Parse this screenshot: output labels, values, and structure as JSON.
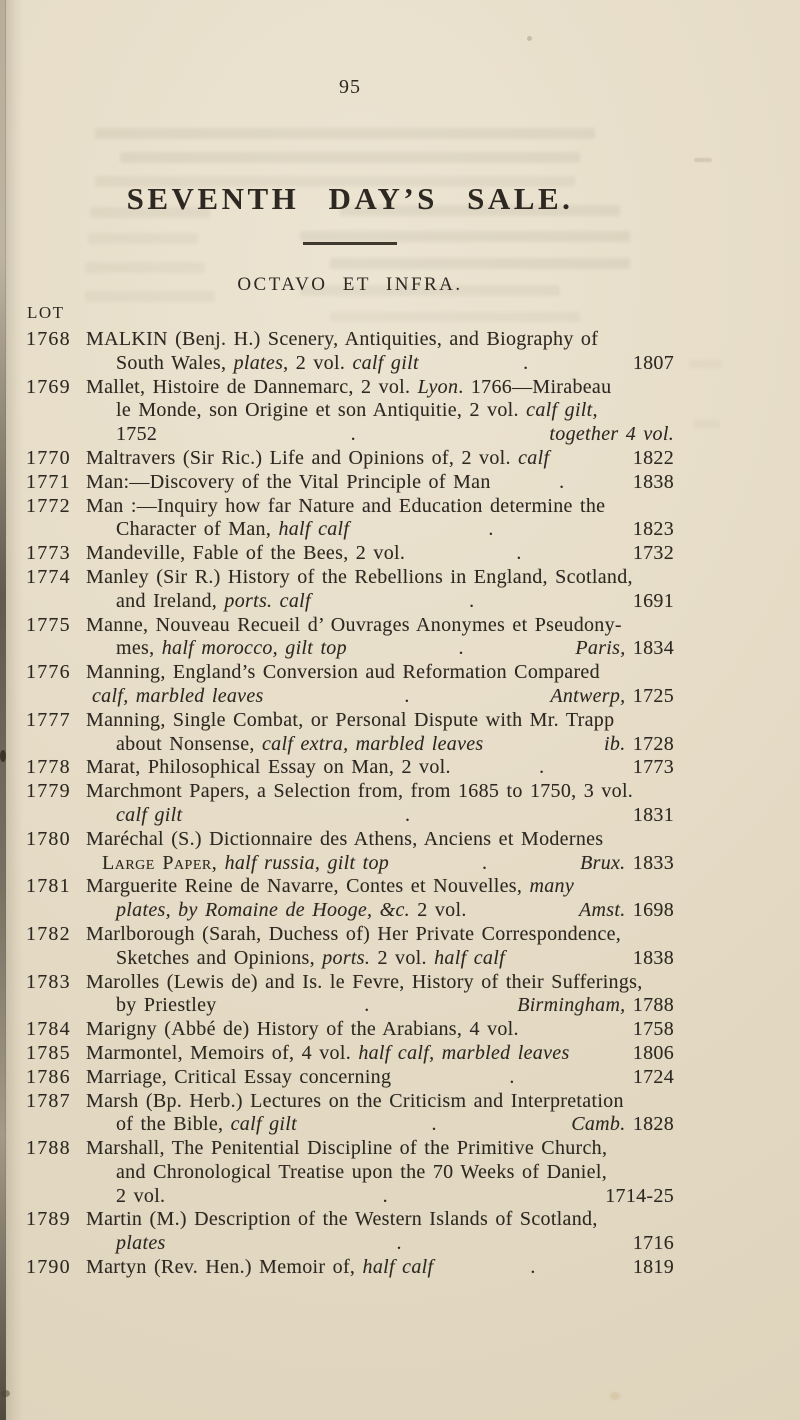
{
  "page": {
    "number": "95",
    "title": "SEVENTH DAY’S SALE.",
    "section_heading": "OCTAVO ET INFRA.",
    "lot_column_header": "LOT"
  },
  "colors": {
    "paper": "#e6dcc7",
    "ink": "#2d2821",
    "edge_shadow": "#2f281f"
  },
  "lots": [
    {
      "num": "1768",
      "lines": [
        {
          "segs": [
            {
              "t": "MALKIN (Benj. H.) Scenery, Antiquities, and Biography of"
            }
          ]
        },
        {
          "indent": 30,
          "segs": [
            {
              "t": "South Wales, "
            },
            {
              "t": "plates",
              "i": 1
            },
            {
              "t": ", 2 vol. "
            },
            {
              "t": "calf gilt",
              "i": 1
            }
          ],
          "dot": true,
          "right": [
            {
              "t": "1807"
            }
          ]
        }
      ]
    },
    {
      "num": "1769",
      "lines": [
        {
          "segs": [
            {
              "t": "Mallet, Histoire de Dannemarc, 2 vol. "
            },
            {
              "t": "Lyon",
              "i": 1
            },
            {
              "t": ". 1766—Mirabeau"
            }
          ]
        },
        {
          "indent": 30,
          "segs": [
            {
              "t": "le Monde, son Origine et son Antiquitie, 2 vol. "
            },
            {
              "t": "calf gilt,",
              "i": 1
            }
          ]
        },
        {
          "indent": 30,
          "segs": [
            {
              "t": "1752"
            }
          ],
          "dot": true,
          "right": [
            {
              "t": "together 4 vol.",
              "i": 1
            }
          ]
        }
      ]
    },
    {
      "num": "1770",
      "lines": [
        {
          "segs": [
            {
              "t": "Maltravers (Sir Ric.) Life and Opinions of, 2 vol. "
            },
            {
              "t": "calf",
              "i": 1
            }
          ],
          "right": [
            {
              "t": "1822"
            }
          ]
        }
      ]
    },
    {
      "num": "1771",
      "lines": [
        {
          "segs": [
            {
              "t": "Man:—Discovery of the Vital Principle of Man"
            }
          ],
          "dot": true,
          "right": [
            {
              "t": "1838"
            }
          ]
        }
      ]
    },
    {
      "num": "1772",
      "lines": [
        {
          "segs": [
            {
              "t": "Man :—Inquiry how far Nature and Education determine the"
            }
          ]
        },
        {
          "indent": 30,
          "segs": [
            {
              "t": "Character of Man, "
            },
            {
              "t": "half calf",
              "i": 1
            }
          ],
          "dot": true,
          "right": [
            {
              "t": "1823"
            }
          ]
        }
      ]
    },
    {
      "num": "1773",
      "lines": [
        {
          "segs": [
            {
              "t": "Mandeville, Fable of the Bees, 2 vol."
            }
          ],
          "dot": true,
          "right": [
            {
              "t": "1732"
            }
          ]
        }
      ]
    },
    {
      "num": "1774",
      "lines": [
        {
          "segs": [
            {
              "t": "Manley (Sir R.) History of the Rebellions in England, Scotland,"
            }
          ]
        },
        {
          "indent": 30,
          "segs": [
            {
              "t": "and Ireland, "
            },
            {
              "t": "ports. calf",
              "i": 1
            }
          ],
          "dot": true,
          "right": [
            {
              "t": "1691"
            }
          ]
        }
      ]
    },
    {
      "num": "1775",
      "lines": [
        {
          "segs": [
            {
              "t": "Manne, Nouveau Recueil d’ Ouvrages Anonymes et Pseudony-"
            }
          ]
        },
        {
          "indent": 30,
          "segs": [
            {
              "t": "mes, "
            },
            {
              "t": "half morocco, gilt top",
              "i": 1
            }
          ],
          "dot": true,
          "right": [
            {
              "t": "Paris,",
              "i": 1
            },
            {
              "t": " 1834"
            }
          ]
        }
      ]
    },
    {
      "num": "1776",
      "lines": [
        {
          "segs": [
            {
              "t": "Manning, England’s Conversion aud Reformation Compared"
            }
          ]
        },
        {
          "indent": 6,
          "segs": [
            {
              "t": "calf, marbled leaves",
              "i": 1
            }
          ],
          "dot": true,
          "right": [
            {
              "t": "Antwerp,",
              "i": 1
            },
            {
              "t": " 1725"
            }
          ]
        }
      ]
    },
    {
      "num": "1777",
      "lines": [
        {
          "segs": [
            {
              "t": "Manning, Single Combat, or Personal Dispute with Mr. Trapp"
            }
          ]
        },
        {
          "indent": 30,
          "segs": [
            {
              "t": "about Nonsense, "
            },
            {
              "t": "calf extra, marbled leaves",
              "i": 1
            }
          ],
          "right": [
            {
              "t": "ib.",
              "i": 1
            },
            {
              "t": " 1728"
            }
          ]
        }
      ]
    },
    {
      "num": "1778",
      "lines": [
        {
          "segs": [
            {
              "t": "Marat, Philosophical Essay on Man, 2 vol."
            }
          ],
          "dot": true,
          "right": [
            {
              "t": "1773"
            }
          ]
        }
      ]
    },
    {
      "num": "1779",
      "lines": [
        {
          "segs": [
            {
              "t": "Marchmont Papers, a Selection from, from 1685 to 1750, 3 vol."
            }
          ]
        },
        {
          "indent": 30,
          "segs": [
            {
              "t": "calf gilt",
              "i": 1
            }
          ],
          "dot": true,
          "right": [
            {
              "t": "1831"
            }
          ]
        }
      ]
    },
    {
      "num": "1780",
      "lines": [
        {
          "segs": [
            {
              "t": "Maréchal (S.) Dictionnaire des Athens, Anciens et Modernes"
            }
          ]
        },
        {
          "indent": 16,
          "segs": [
            {
              "t": "Large Paper,",
              "sc": 1
            },
            {
              "t": " "
            },
            {
              "t": "half russia, gilt top",
              "i": 1
            }
          ],
          "dot": true,
          "right": [
            {
              "t": "Brux.",
              "i": 1
            },
            {
              "t": " 1833"
            }
          ]
        }
      ]
    },
    {
      "num": "1781",
      "lines": [
        {
          "segs": [
            {
              "t": "Marguerite Reine de Navarre, Contes et Nouvelles, "
            },
            {
              "t": "many",
              "i": 1
            }
          ]
        },
        {
          "indent": 30,
          "segs": [
            {
              "t": "plates, by Romaine de Hooge, &c.",
              "i": 1
            },
            {
              "t": " 2 vol."
            }
          ],
          "right": [
            {
              "t": "Amst.",
              "i": 1
            },
            {
              "t": " 1698"
            }
          ]
        }
      ]
    },
    {
      "num": "1782",
      "lines": [
        {
          "segs": [
            {
              "t": "Marlborough (Sarah, Duchess of) Her Private Correspondence,"
            }
          ]
        },
        {
          "indent": 30,
          "segs": [
            {
              "t": "Sketches and Opinions, "
            },
            {
              "t": "ports.",
              "i": 1
            },
            {
              "t": " 2 vol. "
            },
            {
              "t": "half calf",
              "i": 1
            }
          ],
          "right": [
            {
              "t": "1838"
            }
          ]
        }
      ]
    },
    {
      "num": "1783",
      "lines": [
        {
          "segs": [
            {
              "t": "Marolles (Lewis de) and Is. le Fevre, History of their Sufferings,"
            }
          ]
        },
        {
          "indent": 30,
          "segs": [
            {
              "t": "by Priestley"
            }
          ],
          "dot": true,
          "right": [
            {
              "t": "Birmingham,",
              "i": 1
            },
            {
              "t": " 1788"
            }
          ]
        }
      ]
    },
    {
      "num": "1784",
      "lines": [
        {
          "segs": [
            {
              "t": "Marigny (Abbé de) History of the Arabians, 4 vol."
            }
          ],
          "right": [
            {
              "t": "1758"
            }
          ]
        }
      ]
    },
    {
      "num": "1785",
      "lines": [
        {
          "segs": [
            {
              "t": "Marmontel, Memoirs of, 4 vol. "
            },
            {
              "t": "half calf, marbled leaves",
              "i": 1
            }
          ],
          "right": [
            {
              "t": "1806"
            }
          ]
        }
      ]
    },
    {
      "num": "1786",
      "lines": [
        {
          "segs": [
            {
              "t": "Marriage, Critical Essay concerning"
            }
          ],
          "dot": true,
          "right": [
            {
              "t": "1724"
            }
          ]
        }
      ]
    },
    {
      "num": "1787",
      "lines": [
        {
          "segs": [
            {
              "t": "Marsh (Bp. Herb.) Lectures on the Criticism and Interpretation"
            }
          ]
        },
        {
          "indent": 30,
          "segs": [
            {
              "t": "of the Bible, "
            },
            {
              "t": "calf gilt",
              "i": 1
            }
          ],
          "dot": true,
          "right": [
            {
              "t": "Camb.",
              "i": 1
            },
            {
              "t": " 1828"
            }
          ]
        }
      ]
    },
    {
      "num": "1788",
      "lines": [
        {
          "segs": [
            {
              "t": "Marshall, The Penitential Discipline of the Primitive Church,"
            }
          ]
        },
        {
          "indent": 30,
          "segs": [
            {
              "t": "and Chronological Treatise upon the 70 Weeks of Daniel,"
            }
          ]
        },
        {
          "indent": 30,
          "segs": [
            {
              "t": "2 vol."
            }
          ],
          "dot": true,
          "right": [
            {
              "t": "1714-25"
            }
          ]
        }
      ]
    },
    {
      "num": "1789",
      "lines": [
        {
          "segs": [
            {
              "t": "Martin (M.) Description of the Western Islands of Scotland,"
            }
          ]
        },
        {
          "indent": 30,
          "segs": [
            {
              "t": "plates",
              "i": 1
            }
          ],
          "dot": true,
          "right": [
            {
              "t": "1716"
            }
          ]
        }
      ]
    },
    {
      "num": "1790",
      "lines": [
        {
          "segs": [
            {
              "t": "Martyn (Rev. Hen.) Memoir of, "
            },
            {
              "t": "half calf",
              "i": 1
            }
          ],
          "dot": true,
          "right": [
            {
              "t": "1819"
            }
          ]
        }
      ]
    }
  ]
}
